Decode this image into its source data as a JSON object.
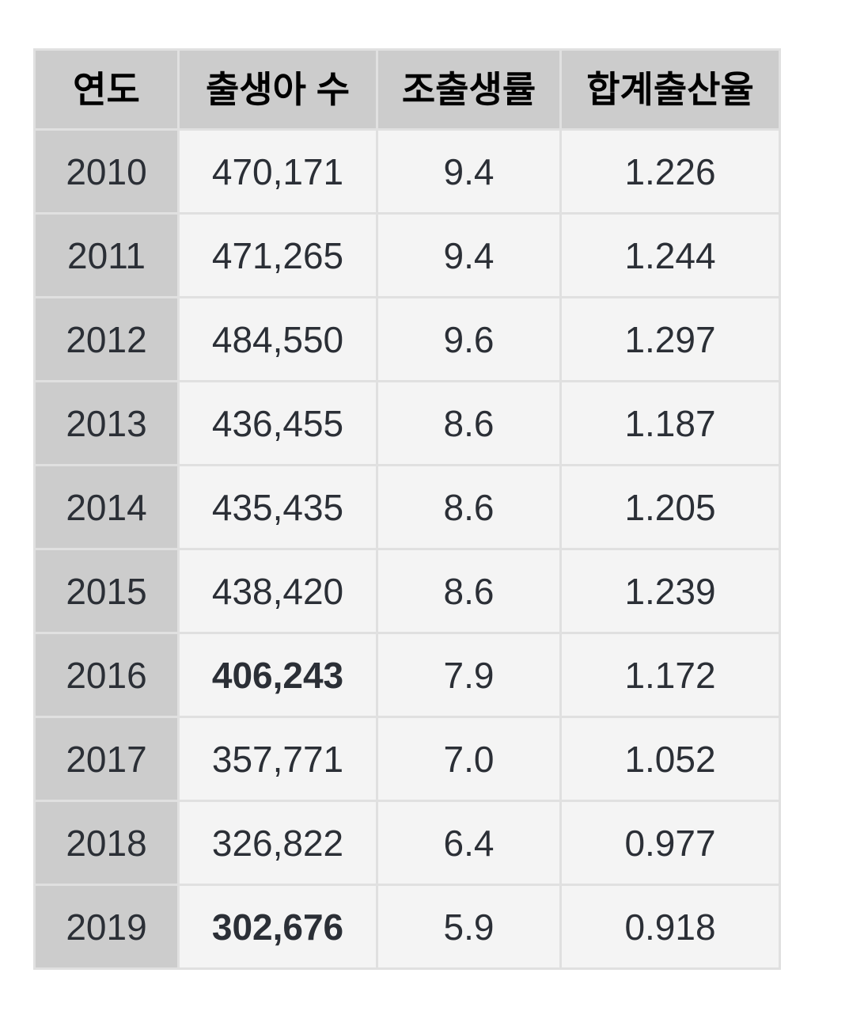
{
  "chart_data": {
    "type": "table",
    "title": "",
    "columns": [
      {
        "key": "year",
        "label": "연도"
      },
      {
        "key": "births",
        "label": "출생아 수"
      },
      {
        "key": "crude_birth_rate",
        "label": "조출생률"
      },
      {
        "key": "total_fertility_rate",
        "label": "합계출산율"
      }
    ],
    "rows": [
      {
        "year": "2010",
        "births": "470,171",
        "births_bold": false,
        "crude_birth_rate": "9.4",
        "total_fertility_rate": "1.226"
      },
      {
        "year": "2011",
        "births": "471,265",
        "births_bold": false,
        "crude_birth_rate": "9.4",
        "total_fertility_rate": "1.244"
      },
      {
        "year": "2012",
        "births": "484,550",
        "births_bold": false,
        "crude_birth_rate": "9.6",
        "total_fertility_rate": "1.297"
      },
      {
        "year": "2013",
        "births": "436,455",
        "births_bold": false,
        "crude_birth_rate": "8.6",
        "total_fertility_rate": "1.187"
      },
      {
        "year": "2014",
        "births": "435,435",
        "births_bold": false,
        "crude_birth_rate": "8.6",
        "total_fertility_rate": "1.205"
      },
      {
        "year": "2015",
        "births": "438,420",
        "births_bold": false,
        "crude_birth_rate": "8.6",
        "total_fertility_rate": "1.239"
      },
      {
        "year": "2016",
        "births": "406,243",
        "births_bold": true,
        "crude_birth_rate": "7.9",
        "total_fertility_rate": "1.172"
      },
      {
        "year": "2017",
        "births": "357,771",
        "births_bold": false,
        "crude_birth_rate": "7.0",
        "total_fertility_rate": "1.052"
      },
      {
        "year": "2018",
        "births": "326,822",
        "births_bold": false,
        "crude_birth_rate": "6.4",
        "total_fertility_rate": "0.977"
      },
      {
        "year": "2019",
        "births": "302,676",
        "births_bold": true,
        "crude_birth_rate": "5.9",
        "total_fertility_rate": "0.918"
      }
    ]
  },
  "colors": {
    "header_bg": "#cccccc",
    "year_col_bg": "#cccccc",
    "cell_bg": "#f4f4f4",
    "border": "#e0e0e0",
    "text": "#2b2f36",
    "header_text": "#000000",
    "page_bg": "#ffffff"
  }
}
